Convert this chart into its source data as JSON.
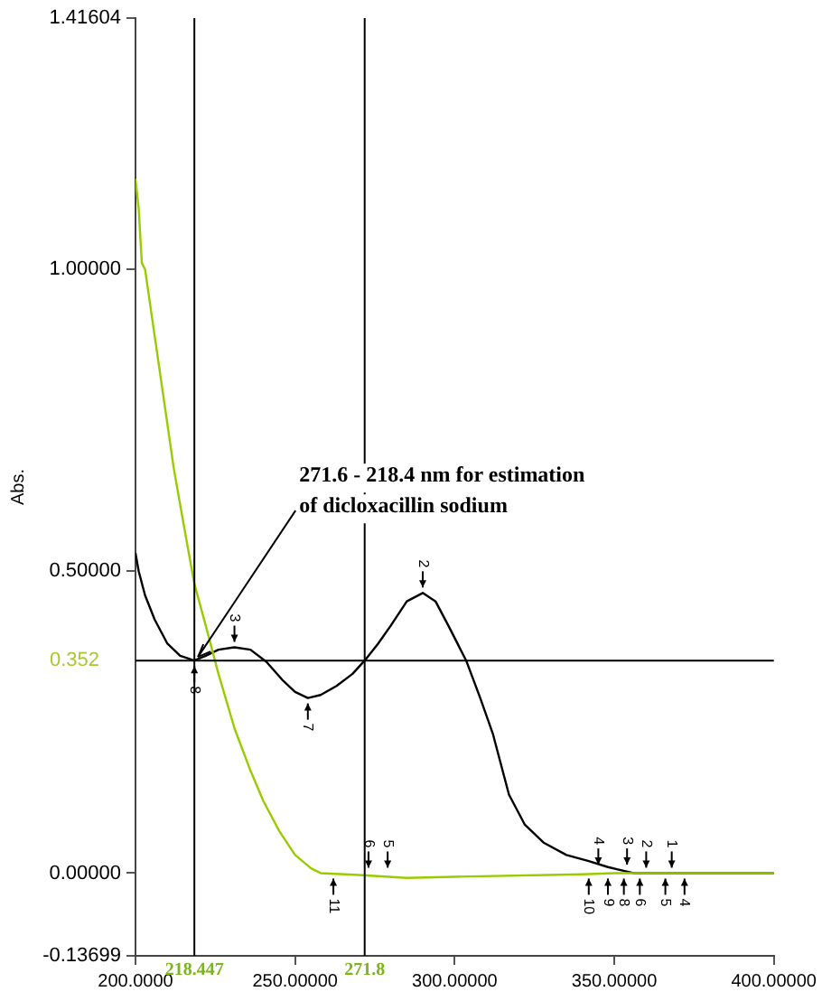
{
  "chart_data": {
    "type": "line",
    "ylabel": "Abs.",
    "xlim": [
      200,
      400
    ],
    "ylim": [
      -0.13699,
      1.41604
    ],
    "xticks": [
      {
        "value": 200,
        "label": "200.0000"
      },
      {
        "value": 250,
        "label": "250.00000"
      },
      {
        "value": 300,
        "label": "300.00000"
      },
      {
        "value": 350,
        "label": "350.00000"
      },
      {
        "value": 400,
        "label": "400.00000"
      }
    ],
    "yticks": [
      -0.13699,
      {
        "value": 0,
        "label": "0.00000"
      },
      {
        "value": 0.5,
        "label": "0.50000"
      },
      {
        "value": 1,
        "label": "1.00000"
      },
      1.41604
    ],
    "grid": false,
    "legend": false,
    "marker": "none",
    "line_style": "solid",
    "series": [
      {
        "color": "#99cc00",
        "x": [
          200,
          201,
          202,
          203,
          206,
          209,
          212,
          215,
          218.4,
          222,
          226,
          231,
          236,
          240,
          245,
          250,
          255,
          258,
          270,
          285,
          300,
          340,
          350,
          400
        ],
        "values": [
          1.15,
          1.1,
          1.01,
          1.0,
          0.89,
          0.78,
          0.67,
          0.58,
          0.48,
          0.41,
          0.33,
          0.24,
          0.17,
          0.12,
          0.07,
          0.03,
          0.008,
          0,
          -0.003,
          -0.008,
          -0.006,
          -0.002,
          0,
          0
        ]
      },
      {
        "color": "#000000",
        "x": [
          200,
          201,
          203,
          206,
          210,
          214,
          218.4,
          222,
          226,
          231,
          236,
          241,
          246,
          250,
          254,
          258,
          263,
          268,
          271.8,
          276,
          280,
          285,
          290,
          294,
          298,
          303.6,
          308,
          312,
          317,
          322,
          328,
          335,
          342,
          348,
          352,
          356,
          400
        ],
        "values": [
          0.53,
          0.5,
          0.46,
          0.42,
          0.38,
          0.36,
          0.352,
          0.36,
          0.37,
          0.374,
          0.37,
          0.35,
          0.32,
          0.3,
          0.29,
          0.295,
          0.31,
          0.33,
          0.352,
          0.38,
          0.41,
          0.45,
          0.464,
          0.45,
          0.41,
          0.352,
          0.29,
          0.23,
          0.13,
          0.08,
          0.05,
          0.03,
          0.02,
          0.01,
          0.005,
          0,
          0
        ]
      }
    ],
    "ref_lines": [
      {
        "axis": "x",
        "value": 218.447,
        "label": "218.447",
        "color": "#000000"
      },
      {
        "axis": "x",
        "value": 271.8,
        "label": "271.8",
        "color": "#000000"
      },
      {
        "axis": "y",
        "value": 0.352,
        "label": "0.352",
        "color": "#000000"
      }
    ],
    "annotations": [
      {
        "text": "8",
        "x": 218.447,
        "y": 0.352
      },
      {
        "text": "3",
        "x": 231,
        "y": 0.374
      },
      {
        "text": "7",
        "x": 254,
        "y": 0.29
      },
      {
        "text": "2",
        "x": 290,
        "y": 0.464
      },
      {
        "text": "11",
        "x": 262,
        "y": 0
      },
      {
        "text": "6",
        "x": 273,
        "y": 0
      },
      {
        "text": "10",
        "x": 342,
        "y": 0
      },
      {
        "text": "5",
        "x": 279,
        "y": 0
      },
      {
        "text": "9",
        "x": 348,
        "y": 0
      },
      {
        "text": "4",
        "x": 345,
        "y": 0.005
      },
      {
        "text": "8",
        "x": 353,
        "y": 0
      },
      {
        "text": "3",
        "x": 354,
        "y": 0.005
      },
      {
        "text": "6",
        "x": 358,
        "y": 0
      },
      {
        "text": "2",
        "x": 360,
        "y": 0
      },
      {
        "text": "5",
        "x": 366,
        "y": 0
      },
      {
        "text": "1",
        "x": 368,
        "y": 0
      },
      {
        "text": "4",
        "x": 372,
        "y": 0
      },
      {
        "text": "271.6 - 218.4 nm for estimation of dicloxacillin sodium",
        "x": 218.447,
        "y": 0.352
      }
    ]
  }
}
